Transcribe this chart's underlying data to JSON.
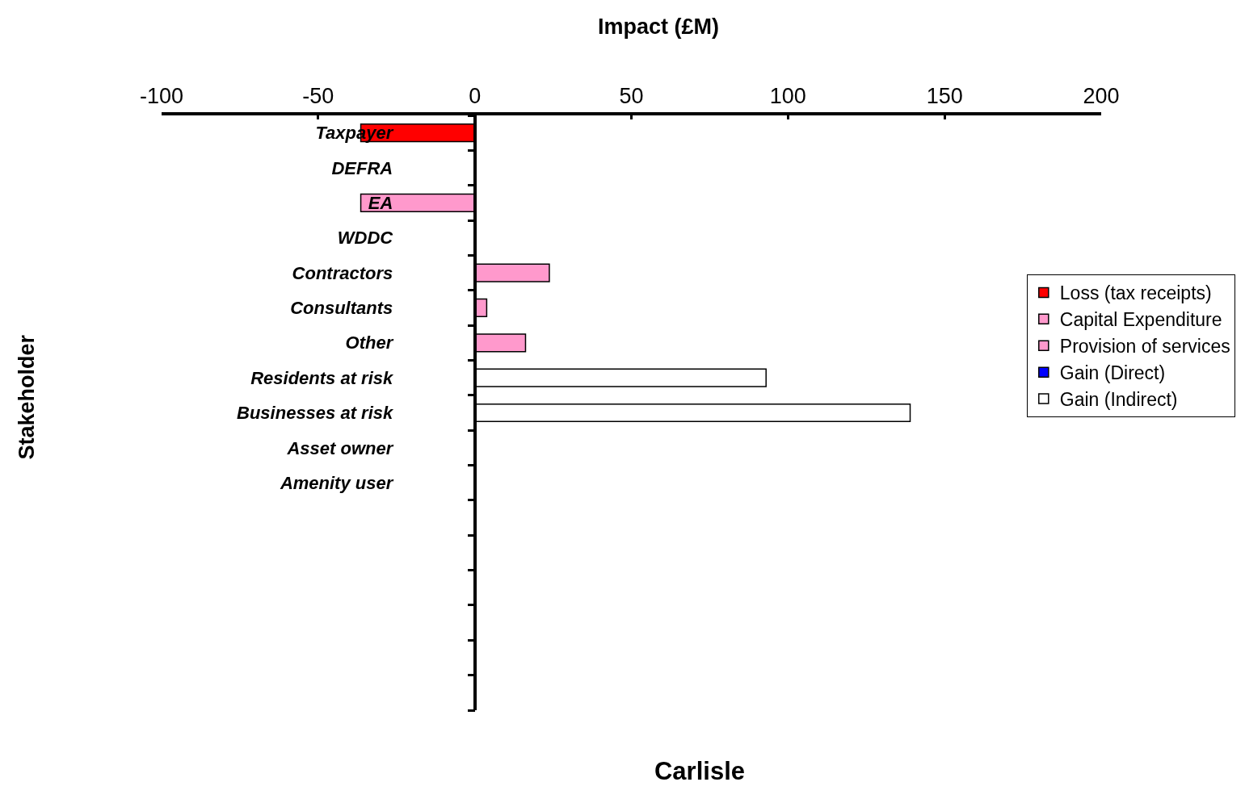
{
  "chart_data": {
    "type": "bar",
    "orientation": "horizontal",
    "stacked": true,
    "title": "Carlisle",
    "xlabel": "Impact (£M)",
    "ylabel": "Stakeholder",
    "categories": [
      "Taxpayer",
      "DEFRA",
      "EA",
      "WDDC",
      "Contractors",
      "Consultants",
      "Other",
      "Residents at risk",
      "Businesses at risk",
      "Asset owner",
      "Amenity user",
      null,
      null,
      null,
      null,
      null,
      null
    ],
    "series": [
      {
        "name": "Loss (tax receipts)",
        "color": "#ff0000",
        "values": [
          -36.4,
          null,
          null,
          null,
          null,
          null,
          null,
          null,
          null,
          null,
          null,
          null,
          null,
          null,
          null,
          null,
          null
        ]
      },
      {
        "name": "Capital Expenditure",
        "color": "#ff99cc",
        "values": [
          null,
          null,
          -36.4,
          null,
          null,
          null,
          null,
          null,
          null,
          null,
          null,
          null,
          null,
          null,
          null,
          null,
          null
        ]
      },
      {
        "name": "Provision of services",
        "color": "#ff99cc",
        "values": [
          null,
          null,
          null,
          null,
          23.8,
          3.8,
          16.2,
          null,
          null,
          null,
          null,
          null,
          null,
          null,
          null,
          null,
          null
        ]
      },
      {
        "name": "Gain (Direct)",
        "color": "#0000ff",
        "values": [
          null,
          null,
          null,
          null,
          null,
          null,
          null,
          null,
          null,
          null,
          null,
          null,
          null,
          null,
          null,
          null,
          null
        ]
      },
      {
        "name": "Gain (Indirect)",
        "color": "#ffffff",
        "values": [
          null,
          null,
          null,
          null,
          null,
          null,
          null,
          93,
          139,
          null,
          null,
          null,
          null,
          null,
          null,
          null,
          null
        ]
      }
    ],
    "xlim": [
      -100,
      200
    ],
    "xticks": [
      -100,
      -50,
      0,
      50,
      100,
      150,
      200
    ],
    "legend": "right"
  }
}
